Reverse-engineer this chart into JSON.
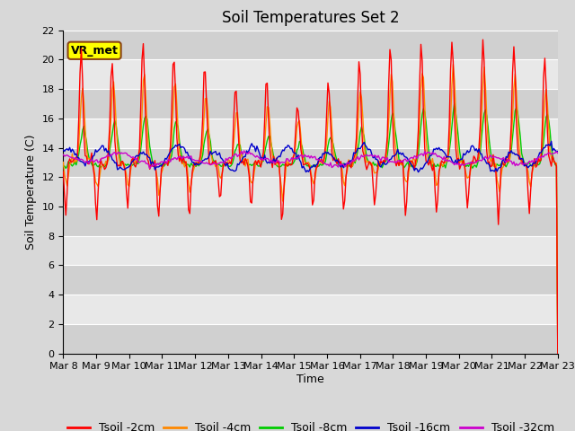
{
  "title": "Soil Temperatures Set 2",
  "xlabel": "Time",
  "ylabel": "Soil Temperature (C)",
  "ylim": [
    0,
    22
  ],
  "yticks": [
    0,
    2,
    4,
    6,
    8,
    10,
    12,
    14,
    16,
    18,
    20,
    22
  ],
  "date_labels": [
    "Mar 8",
    "Mar 9",
    "Mar 10",
    "Mar 11",
    "Mar 12",
    "Mar 13",
    "Mar 14",
    "Mar 15",
    "Mar 16",
    "Mar 17",
    "Mar 18",
    "Mar 19",
    "Mar 20",
    "Mar 21",
    "Mar 22",
    "Mar 23"
  ],
  "legend_labels": [
    "Tsoil -2cm",
    "Tsoil -4cm",
    "Tsoil -8cm",
    "Tsoil -16cm",
    "Tsoil -32cm"
  ],
  "line_colors": [
    "#ff0000",
    "#ff8800",
    "#00cc00",
    "#0000cc",
    "#cc00cc"
  ],
  "annotation_text": "VR_met",
  "annotation_box_color": "#ffff00",
  "annotation_box_edge": "#8b4513",
  "fig_bg_color": "#d8d8d8",
  "plot_bg_light": "#e8e8e8",
  "plot_bg_dark": "#d0d0d0",
  "grid_color": "#ffffff",
  "title_fontsize": 12,
  "axis_label_fontsize": 9,
  "tick_fontsize": 8,
  "legend_fontsize": 9,
  "n_points_per_day": 24,
  "n_days": 16
}
